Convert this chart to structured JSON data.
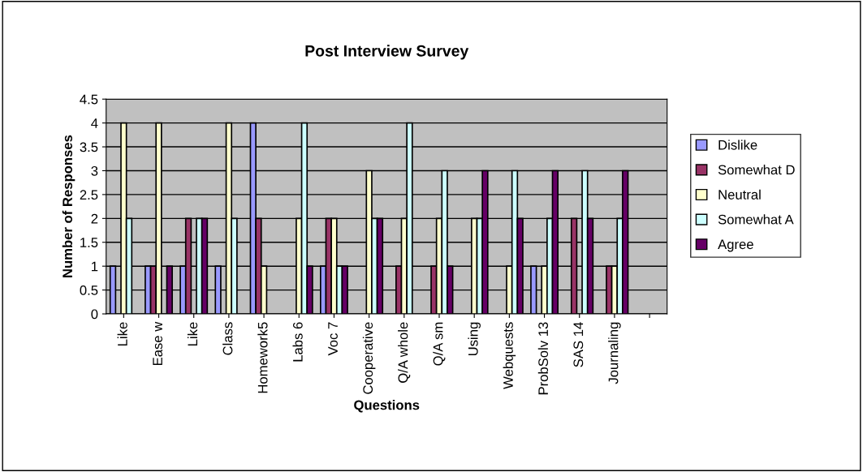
{
  "chart_data": {
    "type": "bar",
    "title": "Post Interview Survey",
    "xlabel": "Questions",
    "ylabel": "Number of Responses",
    "categories": [
      "Like",
      "Ease w",
      "Like",
      "Class",
      "Homework5",
      "Labs 6",
      "Voc 7",
      "Cooperative",
      "Q/A whole",
      "Q/A sm",
      "Using",
      "Webquests",
      "ProbSolv 13",
      "SAS 14",
      "Journaling",
      null
    ],
    "series": [
      {
        "name": "Dislike",
        "color": "#9999ff",
        "values": [
          1,
          1,
          1,
          1,
          4,
          0,
          1,
          0,
          0,
          0,
          0,
          0,
          1,
          0,
          0,
          null
        ]
      },
      {
        "name": "Somewhat D",
        "color": "#993366",
        "values": [
          0,
          1,
          2,
          0,
          2,
          0,
          2,
          0,
          1,
          1,
          0,
          0,
          0,
          2,
          1,
          null
        ]
      },
      {
        "name": "Neutral",
        "color": "#ffffcc",
        "values": [
          4,
          4,
          0,
          4,
          1,
          2,
          2,
          3,
          2,
          2,
          2,
          1,
          1,
          0,
          1,
          null
        ]
      },
      {
        "name": "Somewhat A",
        "color": "#ccffff",
        "values": [
          2,
          0,
          2,
          2,
          0,
          4,
          1,
          2,
          4,
          3,
          2,
          3,
          2,
          3,
          2,
          null
        ]
      },
      {
        "name": "Agree",
        "color": "#660066",
        "values": [
          0,
          1,
          2,
          0,
          0,
          1,
          1,
          2,
          0,
          1,
          3,
          2,
          3,
          2,
          3,
          null
        ]
      }
    ],
    "ylim": [
      0,
      4.5
    ],
    "yticks": [
      0,
      0.5,
      1,
      1.5,
      2,
      2.5,
      3,
      3.5,
      4,
      4.5
    ],
    "grid": "y",
    "legend": "right"
  }
}
